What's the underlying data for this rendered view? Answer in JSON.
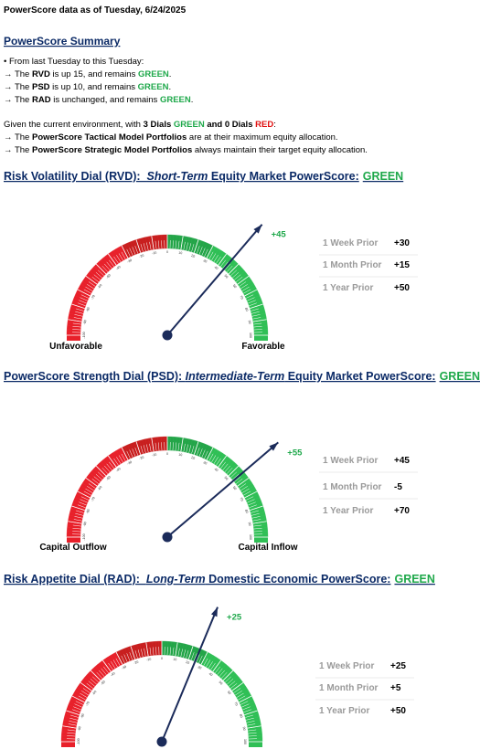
{
  "header": "PowerScore data as of Tuesday, 6/24/2025",
  "summary": {
    "title": "PowerScore Summary",
    "intro": "• From last Tuesday to this Tuesday:",
    "changes": [
      [
        "→ The ",
        "RVD",
        " is up 15, and remains ",
        "GREEN",
        "."
      ],
      [
        "→ The ",
        "PSD",
        " is up 10, and remains ",
        "GREEN",
        "."
      ],
      [
        "→ The ",
        "RAD",
        " is unchanged, and remains ",
        "GREEN",
        "."
      ]
    ],
    "environment": [
      "Given the current environment, with ",
      "3 Dials ",
      "GREEN",
      " and 0 Dials ",
      "RED",
      ":"
    ],
    "portfolios": [
      [
        "→ The ",
        "PowerScore Tactical Model Portfolios",
        " are at their maximum equity allocation."
      ],
      [
        "→ The ",
        "PowerScore Strategic Model Portfolios",
        " always maintain their target equity allocation."
      ]
    ]
  },
  "dial_range": [
    -100,
    100
  ],
  "dial_ticks": [
    -100,
    -90,
    -80,
    -70,
    -60,
    -50,
    -40,
    -30,
    -20,
    -10,
    0,
    10,
    20,
    30,
    40,
    50,
    60,
    70,
    80,
    90,
    100
  ],
  "dials": [
    {
      "title": [
        "Risk Volatility Dial (RVD):  ",
        "Short-Term",
        " Equity Market PowerScore:",
        "GREEN"
      ],
      "value": 45,
      "value_label": "+45",
      "left_label": "Unfavorable",
      "right_label": "Favorable",
      "prior": [
        {
          "label": "1 Week Prior",
          "value": "+30"
        },
        {
          "label": "1 Month Prior",
          "value": "+15"
        },
        {
          "label": "1 Year Prior",
          "value": "+50"
        }
      ]
    },
    {
      "title": [
        "PowerScore Strength Dial (PSD): ",
        "Intermediate-Term",
        " Equity Market PowerScore:",
        "GREEN"
      ],
      "value": 55,
      "value_label": "+55",
      "left_label": "Capital Outflow",
      "right_label": "Capital Inflow",
      "prior": [
        {
          "label": "1 Week Prior",
          "value": "+45"
        },
        {
          "label": "1 Month Prior",
          "value": "-5"
        },
        {
          "label": "1 Year Prior",
          "value": "+70"
        }
      ]
    },
    {
      "title": [
        "Risk Appetite Dial (RAD):  ",
        "Long-Term",
        " Domestic Economic PowerScore:",
        "GREEN"
      ],
      "value": 25,
      "value_label": "+25",
      "prior": [
        {
          "label": "1 Week Prior",
          "value": "+25"
        },
        {
          "label": "1 Month Prior",
          "value": "+5"
        },
        {
          "label": "1 Year Prior",
          "value": "+50"
        }
      ]
    }
  ]
}
